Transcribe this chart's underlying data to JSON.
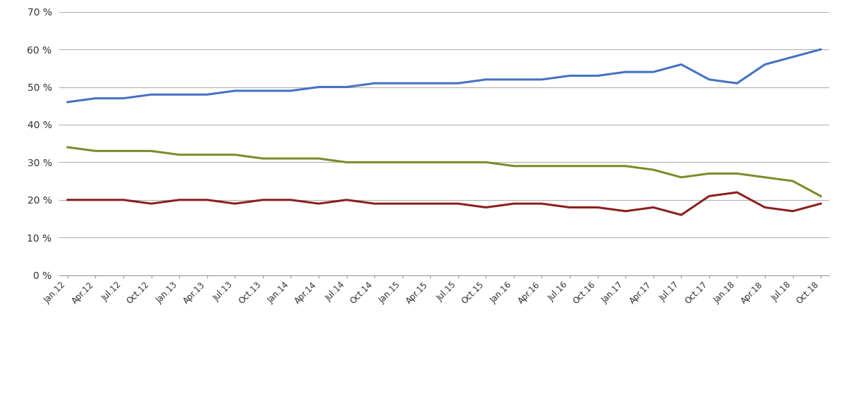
{
  "x_labels": [
    "Jan.12",
    "Apr.12",
    "Jul.12",
    "Oct.12",
    "Jan.13",
    "Apr.13",
    "Jul.13",
    "Oct.13",
    "Jan.14",
    "Apr.14",
    "Jul.14",
    "Oct.14",
    "Jan.15",
    "Apr.15",
    "Jul.15",
    "Oct.15",
    "Jan.16",
    "Apr.16",
    "Jul.16",
    "Oct.16",
    "Jan.17",
    "Apr.17",
    "Jul.17",
    "Oct.17",
    "Jan.18",
    "Apr.18",
    "Jul.18",
    "Oct.18"
  ],
  "support": [
    46,
    47,
    47,
    48,
    48,
    48,
    49,
    49,
    49,
    50,
    50,
    51,
    51,
    51,
    51,
    52,
    52,
    52,
    53,
    53,
    54,
    54,
    56,
    52,
    51,
    56,
    58,
    60
  ],
  "no_support": [
    34,
    33,
    33,
    33,
    32,
    32,
    32,
    31,
    31,
    31,
    30,
    30,
    30,
    30,
    30,
    30,
    29,
    29,
    29,
    29,
    29,
    28,
    26,
    27,
    27,
    26,
    25,
    21
  ],
  "dont_know": [
    20,
    20,
    20,
    19,
    20,
    20,
    19,
    20,
    20,
    19,
    20,
    19,
    19,
    19,
    19,
    18,
    19,
    19,
    18,
    18,
    17,
    18,
    16,
    21,
    22,
    18,
    17,
    19
  ],
  "support_color": "#4472C4",
  "no_support_color": "#7B8C2A",
  "dont_know_color": "#8B2020",
  "ylim": [
    0,
    70
  ],
  "yticks": [
    0,
    10,
    20,
    30,
    40,
    50,
    60,
    70
  ],
  "ytick_labels": [
    "0 %",
    "10 %",
    "20 %",
    "30 %",
    "40 %",
    "50 %",
    "60 %",
    "70 %"
  ],
  "background_color": "#ffffff",
  "grid_color": "#b0b0b0",
  "line_width": 2.2
}
